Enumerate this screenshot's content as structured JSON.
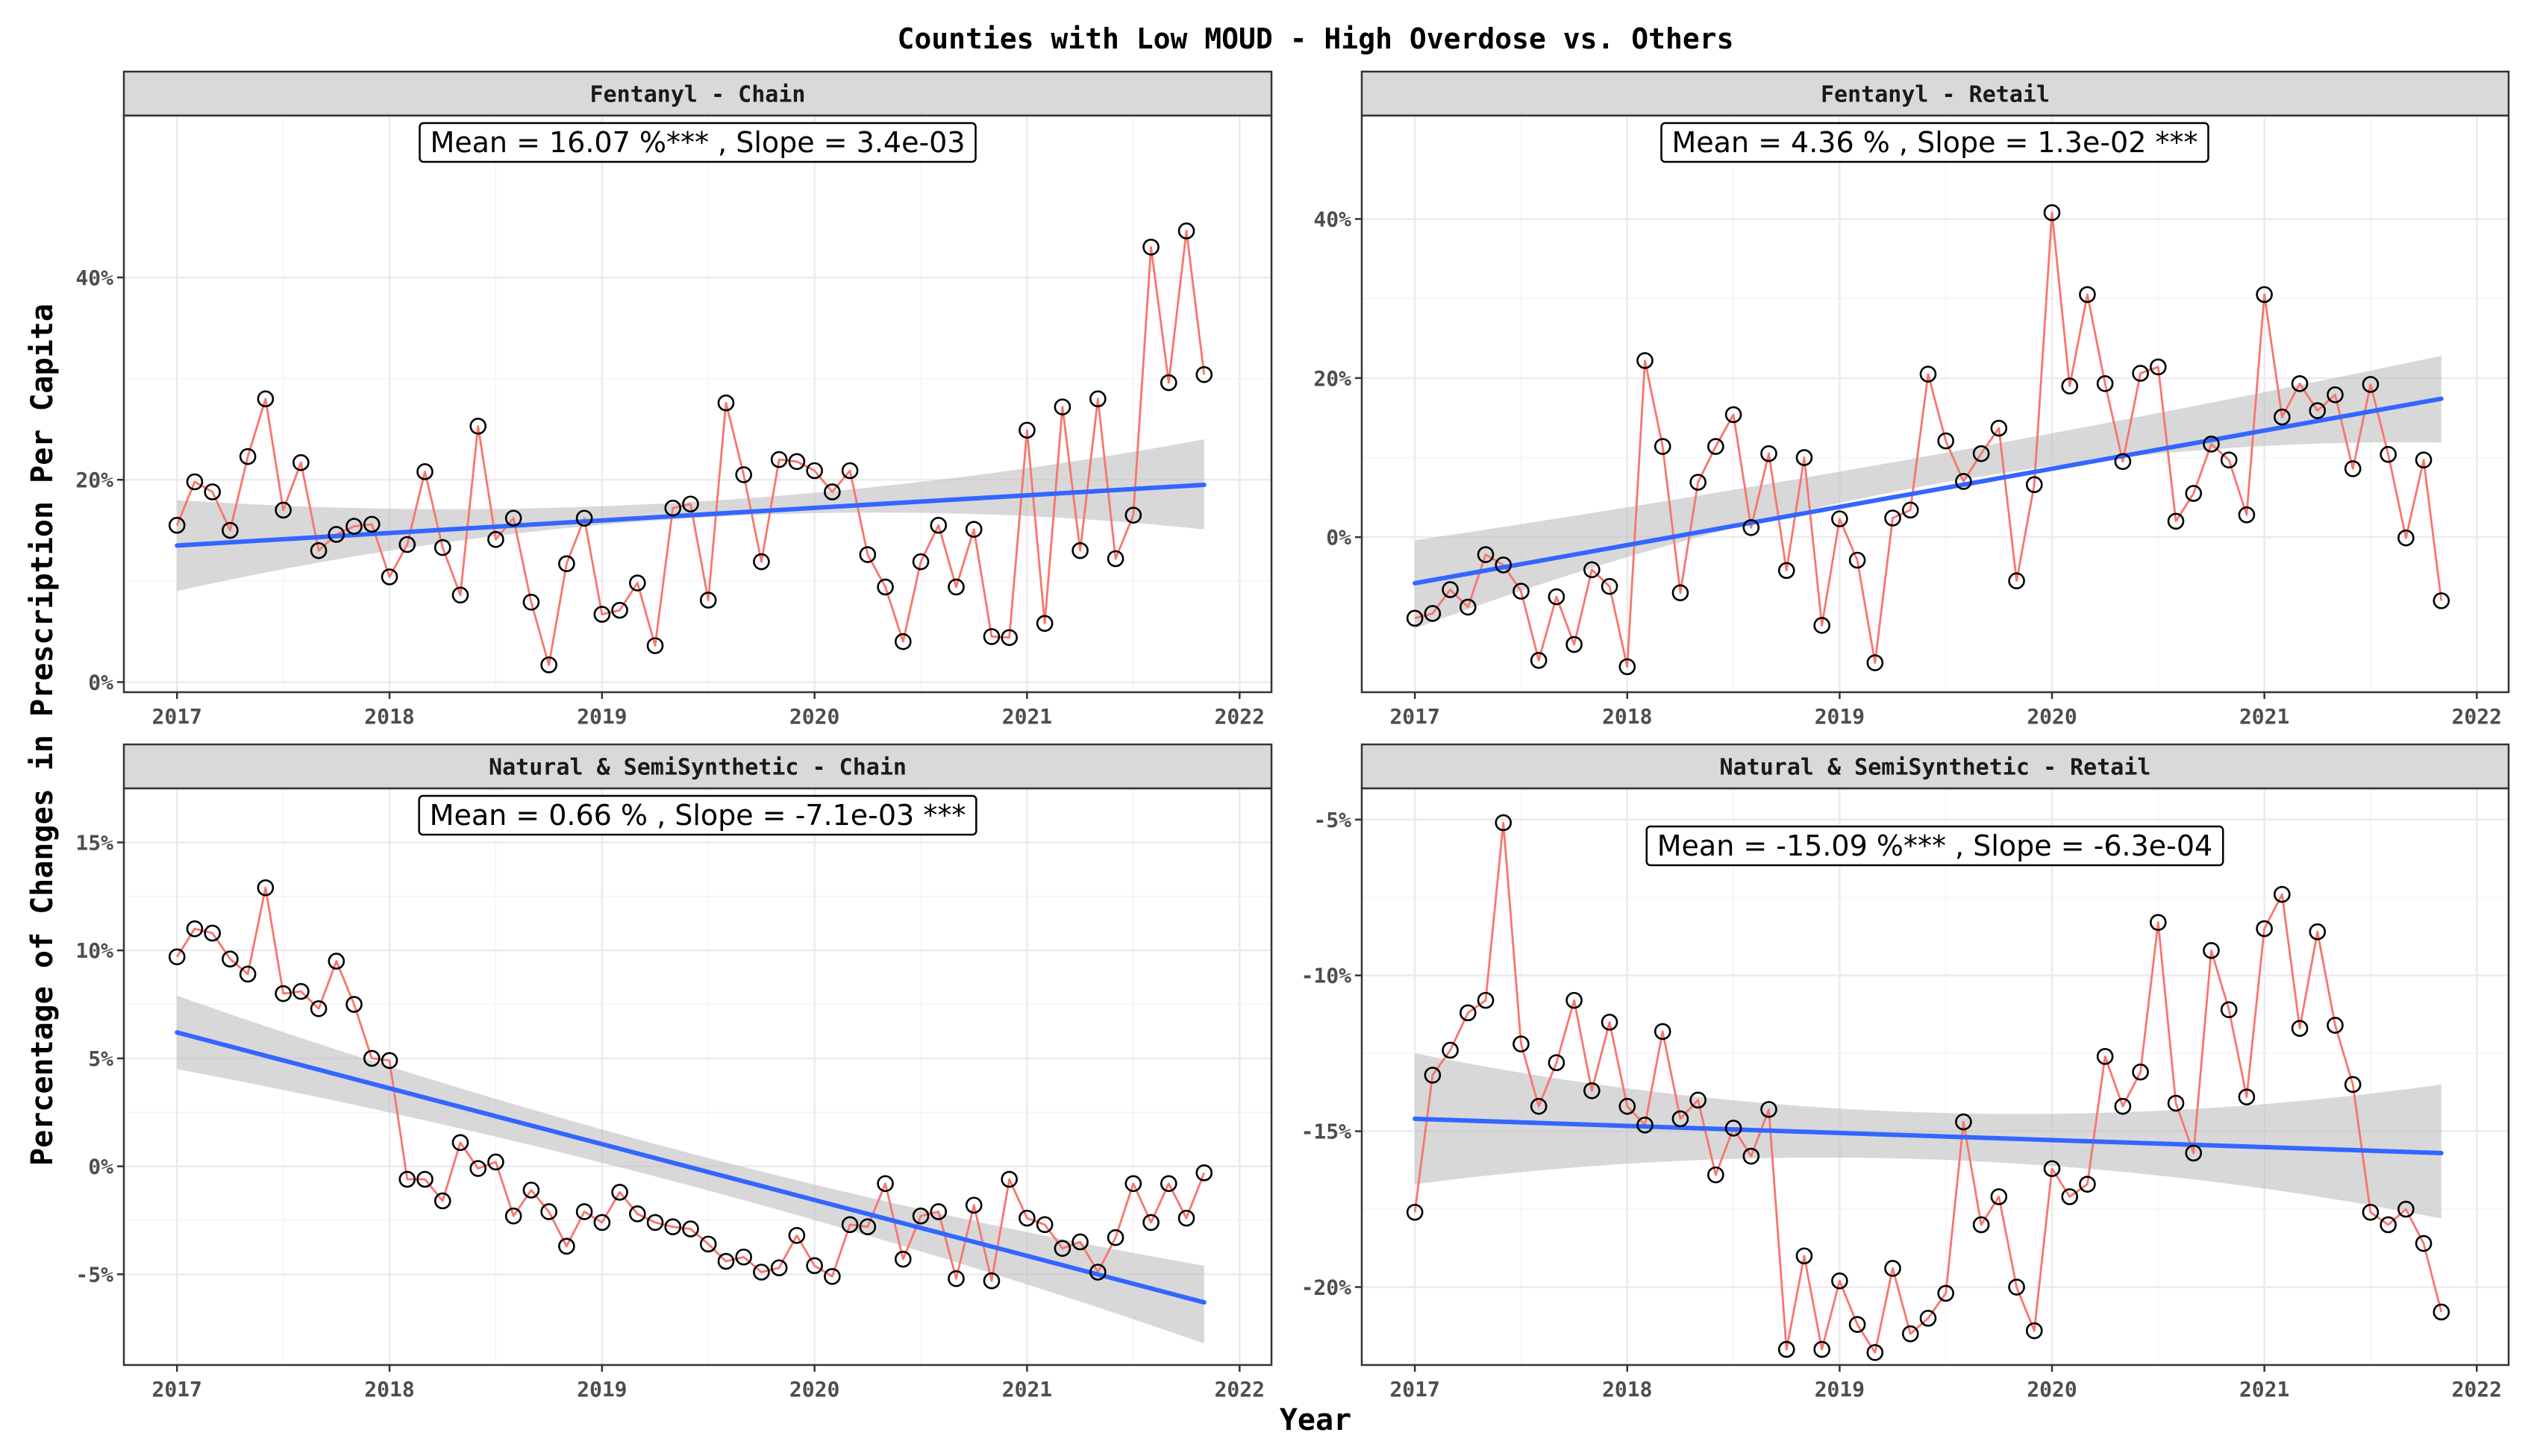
{
  "figure": {
    "title": "Counties with Low MOUD - High Overdose vs. Others",
    "xlabel": "Year",
    "ylabel": "Percentage of Changes in Prescription Per Capita"
  },
  "colors": {
    "line": "#F8766D",
    "trend": "#3366FF",
    "ribbon": "#BEBEBE",
    "strip": "#D9D9D9",
    "grid": "#EBEBEB"
  },
  "chart_data": [
    {
      "type": "line",
      "panel": "Fentanyl - Chain",
      "annotation": "Mean = 16.07 %*** , Slope = 3.4e-03",
      "xlim": [
        2016.75,
        2022.15
      ],
      "ylim": [
        -1,
        56
      ],
      "x_ticks": [
        2017,
        2018,
        2019,
        2020,
        2021,
        2022
      ],
      "x_tick_labels": [
        "2017",
        "2018",
        "2019",
        "2020",
        "2021",
        "2022"
      ],
      "y_ticks": [
        0,
        20,
        40
      ],
      "y_tick_labels": [
        "0%",
        "20%",
        "40%"
      ],
      "start": 2017.0,
      "step": 0.08333,
      "values": [
        15.5,
        19.8,
        18.8,
        15.0,
        22.3,
        28.0,
        17.0,
        21.7,
        13.0,
        14.6,
        15.4,
        15.6,
        10.4,
        13.6,
        20.8,
        13.3,
        8.6,
        25.3,
        14.1,
        16.2,
        7.9,
        1.7,
        11.7,
        16.2,
        6.7,
        7.1,
        9.8,
        3.6,
        17.2,
        17.6,
        8.1,
        27.6,
        20.5,
        11.9,
        22.0,
        21.8,
        20.9,
        18.8,
        20.9,
        12.6,
        9.4,
        4.0,
        11.9,
        15.5,
        9.4,
        15.1,
        4.5,
        4.4,
        24.9,
        5.8,
        27.2,
        13.0,
        28.0,
        12.2,
        16.5,
        43.0,
        29.6,
        44.6,
        30.4
      ],
      "trend": {
        "y_start": 13.5,
        "y_end": 19.5
      },
      "ribbon": {
        "low_start": 9.0,
        "low_mid": 16.2,
        "low_end": 15.1,
        "high_start": 18.0,
        "high_mid": 17.8,
        "high_end": 24.0
      }
    },
    {
      "type": "line",
      "panel": "Fentanyl - Retail",
      "annotation": "Mean = 4.36 % , Slope = 1.3e-02 ***",
      "xlim": [
        2016.75,
        2022.15
      ],
      "ylim": [
        -19.5,
        53
      ],
      "x_ticks": [
        2017,
        2018,
        2019,
        2020,
        2021,
        2022
      ],
      "x_tick_labels": [
        "2017",
        "2018",
        "2019",
        "2020",
        "2021",
        "2022"
      ],
      "y_ticks": [
        0,
        20,
        40
      ],
      "y_tick_labels": [
        "0%",
        "20%",
        "40%"
      ],
      "start": 2017.0,
      "step": 0.08333,
      "values": [
        -10.2,
        -9.6,
        -6.6,
        -8.8,
        -2.2,
        -3.5,
        -6.8,
        -15.5,
        -7.5,
        -13.5,
        -4.1,
        -6.2,
        -16.3,
        22.2,
        11.4,
        -7.0,
        6.9,
        11.4,
        15.4,
        1.2,
        10.5,
        -4.2,
        10.0,
        -11.1,
        2.3,
        -2.9,
        -15.8,
        2.4,
        3.4,
        20.5,
        12.1,
        7.0,
        10.5,
        13.7,
        -5.5,
        6.6,
        40.8,
        19.0,
        30.5,
        19.3,
        9.5,
        20.6,
        21.4,
        2.0,
        5.5,
        11.7,
        9.7,
        2.8,
        30.5,
        15.1,
        19.3,
        15.9,
        17.9,
        8.6,
        19.2,
        10.4,
        -0.1,
        9.7,
        -8.0
      ],
      "trend": {
        "y_start": -5.8,
        "y_end": 17.4
      },
      "ribbon": {
        "low_start": -11.5,
        "low_mid": 6.5,
        "low_end": 11.9,
        "high_start": -0.4,
        "high_mid": 10.2,
        "high_end": 22.8
      }
    },
    {
      "type": "line",
      "panel": "Natural & SemiSynthetic - Chain",
      "annotation": "Mean = 0.66 % , Slope = -7.1e-03 ***",
      "xlim": [
        2016.75,
        2022.15
      ],
      "ylim": [
        -9.2,
        17.5
      ],
      "x_ticks": [
        2017,
        2018,
        2019,
        2020,
        2021,
        2022
      ],
      "x_tick_labels": [
        "2017",
        "2018",
        "2019",
        "2020",
        "2021",
        "2022"
      ],
      "y_ticks": [
        -5,
        0,
        5,
        10,
        15
      ],
      "y_tick_labels": [
        "-5%",
        "0%",
        "5%",
        "10%",
        "15%"
      ],
      "start": 2017.0,
      "step": 0.08333,
      "values": [
        9.7,
        11.0,
        10.8,
        9.6,
        8.9,
        12.9,
        8.0,
        8.1,
        7.3,
        9.5,
        7.5,
        5.0,
        4.9,
        -0.6,
        -0.6,
        -1.6,
        1.1,
        -0.1,
        0.2,
        -2.3,
        -1.1,
        -2.1,
        -3.7,
        -2.1,
        -2.6,
        -1.2,
        -2.2,
        -2.6,
        -2.8,
        -2.9,
        -3.6,
        -4.4,
        -4.2,
        -4.9,
        -4.7,
        -3.2,
        -4.6,
        -5.1,
        -2.7,
        -2.8,
        -0.8,
        -4.3,
        -2.3,
        -2.1,
        -5.2,
        -1.8,
        -5.3,
        -0.6,
        -2.4,
        -2.7,
        -3.8,
        -3.5,
        -4.9,
        -3.3,
        -0.8,
        -2.6,
        -0.8,
        -2.4,
        -0.3
      ],
      "trend": {
        "y_start": 6.2,
        "y_end": -6.3
      },
      "ribbon": {
        "low_start": 4.5,
        "low_mid": -0.9,
        "low_end": -8.2,
        "high_start": 7.9,
        "high_mid": 0.6,
        "high_end": -4.6
      }
    },
    {
      "type": "line",
      "panel": "Natural & SemiSynthetic - Retail",
      "annotation": "Mean = -15.09 %*** , Slope = -6.3e-04",
      "xlim": [
        2016.75,
        2022.15
      ],
      "ylim": [
        -22.5,
        -4.0
      ],
      "x_ticks": [
        2017,
        2018,
        2019,
        2020,
        2021,
        2022
      ],
      "x_tick_labels": [
        "2017",
        "2018",
        "2019",
        "2020",
        "2021",
        "2022"
      ],
      "y_ticks": [
        -20,
        -15,
        -10,
        -5
      ],
      "y_tick_labels": [
        "-20%",
        "-15%",
        "-10%",
        "-5%"
      ],
      "start": 2017.0,
      "step": 0.08333,
      "values": [
        -17.6,
        -13.2,
        -12.4,
        -11.2,
        -10.8,
        -5.1,
        -12.2,
        -14.2,
        -12.8,
        -10.8,
        -13.7,
        -11.5,
        -14.2,
        -14.8,
        -11.8,
        -14.6,
        -14.0,
        -16.4,
        -14.9,
        -15.8,
        -14.3,
        -22.0,
        -19.0,
        -22.0,
        -19.8,
        -21.2,
        -22.1,
        -19.4,
        -21.5,
        -21.0,
        -20.2,
        -14.7,
        -18.0,
        -17.1,
        -20.0,
        -21.4,
        -16.2,
        -17.1,
        -16.7,
        -12.6,
        -14.2,
        -13.1,
        -8.3,
        -14.1,
        -15.7,
        -9.2,
        -11.1,
        -13.9,
        -8.5,
        -7.4,
        -11.7,
        -8.6,
        -11.6,
        -13.5,
        -17.6,
        -18.0,
        -17.5,
        -18.6,
        -20.8
      ],
      "trend": {
        "y_start": -14.6,
        "y_end": -15.7
      },
      "ribbon": {
        "low_start": -16.7,
        "low_mid": -15.9,
        "low_end": -17.8,
        "high_start": -12.5,
        "high_mid": -14.4,
        "high_end": -13.5
      }
    }
  ]
}
